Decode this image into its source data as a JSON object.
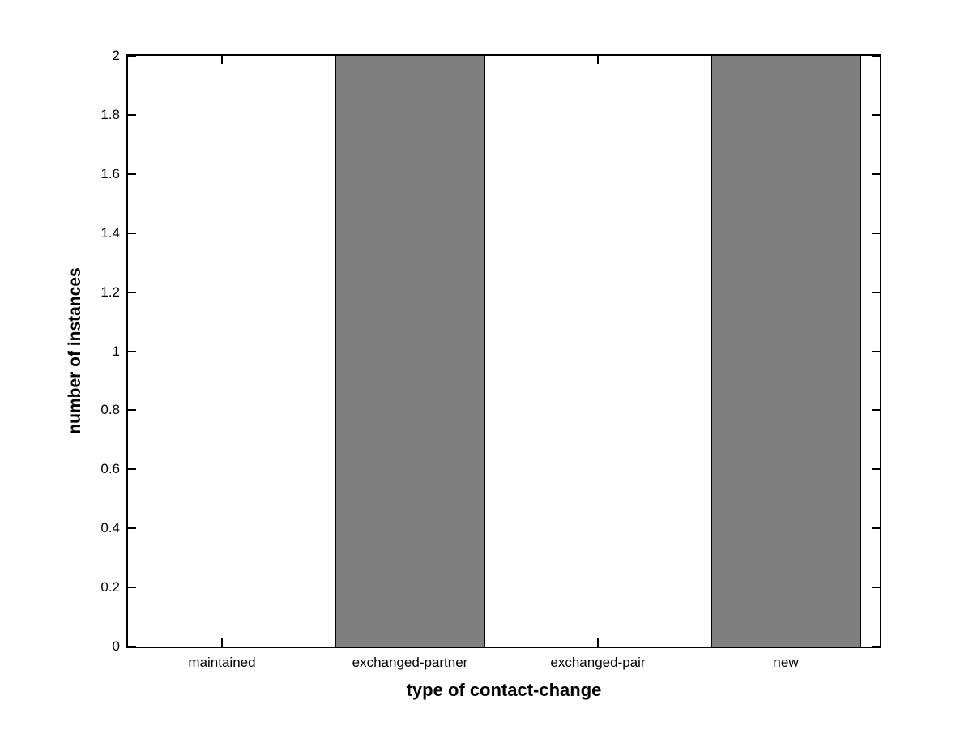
{
  "chart_data": {
    "type": "bar",
    "title": "",
    "xlabel": "type of contact-change",
    "ylabel": "number of instances",
    "categories": [
      "maintained",
      "exchanged-partner",
      "exchanged-pair",
      "new"
    ],
    "values": [
      0,
      2,
      0,
      2
    ],
    "ylim": [
      0,
      2
    ],
    "yticks": [
      0,
      0.2,
      0.4,
      0.6,
      0.8,
      1,
      1.2,
      1.4,
      1.6,
      1.8,
      2
    ],
    "ytick_labels": [
      "0",
      "0.2",
      "0.4",
      "0.6",
      "0.8",
      "1",
      "1.2",
      "1.4",
      "1.6",
      "1.8",
      "2"
    ],
    "bar_width_fraction": 0.8,
    "bar_color": "#7f7f7f",
    "bar_edge_color": "#000000",
    "axis_color": "#000000",
    "background_color": "#ffffff",
    "grid": false,
    "legend": null
  }
}
